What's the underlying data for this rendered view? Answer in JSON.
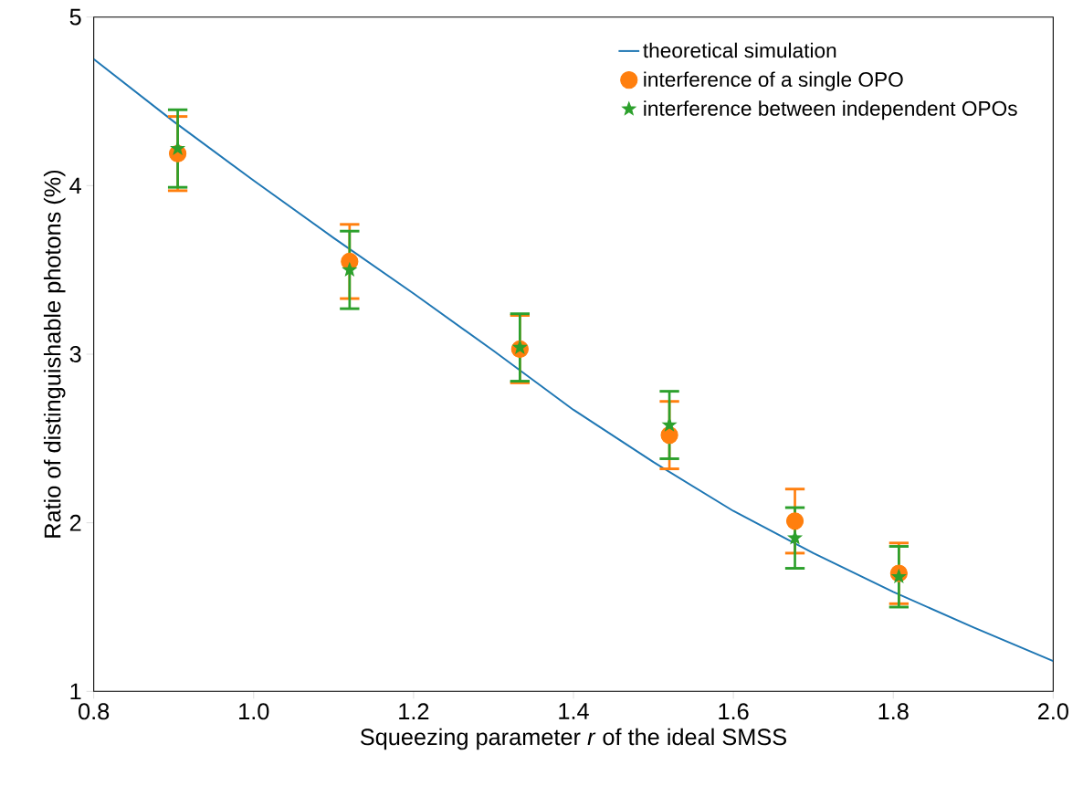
{
  "chart_data": {
    "type": "line",
    "xlabel": "Squeezing parameter *r* of the ideal SMSS",
    "ylabel": "Ratio of distinguishable photons (%)",
    "xlim": [
      0.8,
      2.0
    ],
    "ylim": [
      1,
      5
    ],
    "xticks": [
      0.8,
      {
        "value": 1.0,
        "label": "1.0"
      },
      1.2,
      1.4,
      1.6,
      1.8,
      {
        "value": 2.0,
        "label": "2.0"
      }
    ],
    "yticks": [
      1,
      2,
      3,
      4,
      5
    ],
    "legend": "top right",
    "series": [
      {
        "name": "theoretical simulation",
        "color": "#1f77b4",
        "marker": "none",
        "x": [
          0.8,
          0.9,
          1.0,
          1.1,
          1.2,
          1.3,
          1.4,
          1.5,
          1.6,
          1.7,
          1.8,
          1.9,
          2.0
        ],
        "values": [
          4.75,
          4.38,
          4.03,
          3.69,
          3.36,
          3.02,
          2.67,
          2.36,
          2.07,
          1.82,
          1.59,
          1.38,
          1.18
        ]
      },
      {
        "name": "interference of a single OPO",
        "type": "scatter",
        "color": "#ff7f0e",
        "marker": "circle",
        "x": [
          0.905,
          1.12,
          1.333,
          1.52,
          1.677,
          1.807
        ],
        "values": [
          4.19,
          3.55,
          3.03,
          2.52,
          2.01,
          1.7
        ],
        "errors": [
          0.22,
          0.22,
          0.2,
          0.2,
          0.19,
          0.18
        ]
      },
      {
        "name": "interference between independent OPOs",
        "type": "scatter",
        "color": "#2ca02c",
        "marker": "star",
        "x": [
          0.905,
          1.12,
          1.333,
          1.52,
          1.677,
          1.807
        ],
        "values": [
          4.22,
          3.5,
          3.04,
          2.58,
          1.91,
          1.68
        ],
        "errors": [
          0.23,
          0.23,
          0.2,
          0.2,
          0.18,
          0.18
        ]
      }
    ]
  }
}
